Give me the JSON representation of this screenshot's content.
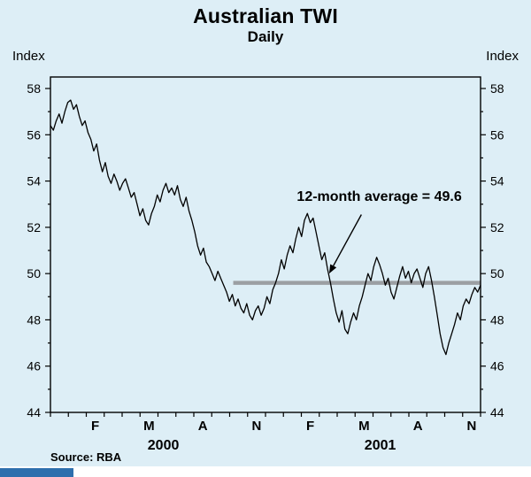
{
  "page": {
    "background": "#ddeef6",
    "footer_bar_color": "#2e6fad"
  },
  "chart_data": {
    "type": "line",
    "title": "Australian TWI",
    "subtitle": "Daily",
    "y_axis_label_left": "Index",
    "y_axis_label_right": "Index",
    "ylim": [
      44,
      58
    ],
    "yticks": [
      44,
      46,
      48,
      50,
      52,
      54,
      56,
      58
    ],
    "x_range_months": [
      0,
      24
    ],
    "xticks": [
      {
        "label": "F",
        "m": 2.5
      },
      {
        "label": "M",
        "m": 5.5
      },
      {
        "label": "A",
        "m": 8.5
      },
      {
        "label": "N",
        "m": 11.5
      },
      {
        "label": "F",
        "m": 14.5
      },
      {
        "label": "M",
        "m": 17.5
      },
      {
        "label": "A",
        "m": 20.5
      },
      {
        "label": "N",
        "m": 23.5
      }
    ],
    "year_ticks": [
      {
        "label": "2000",
        "m": 6.3
      },
      {
        "label": "2001",
        "m": 18.4
      }
    ],
    "series": [
      {
        "name": "TWI",
        "color": "#000000",
        "x_start_month": 0,
        "x_end_month": 24,
        "values": [
          56.4,
          56.2,
          56.6,
          56.9,
          56.5,
          57.0,
          57.4,
          57.5,
          57.1,
          57.3,
          56.8,
          56.4,
          56.6,
          56.1,
          55.8,
          55.3,
          55.6,
          54.9,
          54.4,
          54.8,
          54.2,
          53.9,
          54.3,
          54.0,
          53.6,
          53.9,
          54.1,
          53.7,
          53.3,
          53.5,
          53.0,
          52.5,
          52.8,
          52.3,
          52.1,
          52.6,
          52.9,
          53.4,
          53.1,
          53.6,
          53.9,
          53.5,
          53.7,
          53.4,
          53.8,
          53.2,
          52.9,
          53.3,
          52.7,
          52.3,
          51.8,
          51.2,
          50.8,
          51.1,
          50.5,
          50.3,
          50.0,
          49.7,
          50.1,
          49.8,
          49.5,
          49.2,
          48.8,
          49.1,
          48.6,
          48.9,
          48.5,
          48.3,
          48.7,
          48.2,
          48.0,
          48.4,
          48.6,
          48.2,
          48.5,
          49.0,
          48.7,
          49.3,
          49.6,
          50.0,
          50.6,
          50.2,
          50.8,
          51.2,
          50.9,
          51.5,
          52.0,
          51.6,
          52.3,
          52.6,
          52.2,
          52.4,
          51.8,
          51.2,
          50.6,
          50.9,
          50.2,
          49.6,
          48.9,
          48.3,
          47.9,
          48.4,
          47.6,
          47.4,
          47.9,
          48.3,
          48.0,
          48.6,
          49.0,
          49.5,
          50.0,
          49.7,
          50.3,
          50.7,
          50.4,
          50.0,
          49.5,
          49.8,
          49.2,
          48.9,
          49.4,
          49.9,
          50.3,
          49.8,
          50.1,
          49.6,
          50.0,
          50.2,
          49.8,
          49.4,
          50.0,
          50.3,
          49.7,
          49.0,
          48.2,
          47.4,
          46.8,
          46.5,
          47.0,
          47.4,
          47.8,
          48.3,
          48.0,
          48.6,
          48.9,
          48.7,
          49.1,
          49.4,
          49.2,
          49.5
        ]
      }
    ],
    "average_line": {
      "value": 49.6,
      "from_month": 10.2,
      "to_month": 24,
      "color": "#9b9fa3"
    },
    "annotation": {
      "text": "12-month average = 49.6",
      "text_month": 18.35,
      "text_value": 53.15,
      "arrow_from_month": 17.35,
      "arrow_from_value": 52.55,
      "arrow_to_month": 15.55,
      "arrow_to_value": 50.0
    },
    "source": "Source: RBA"
  }
}
